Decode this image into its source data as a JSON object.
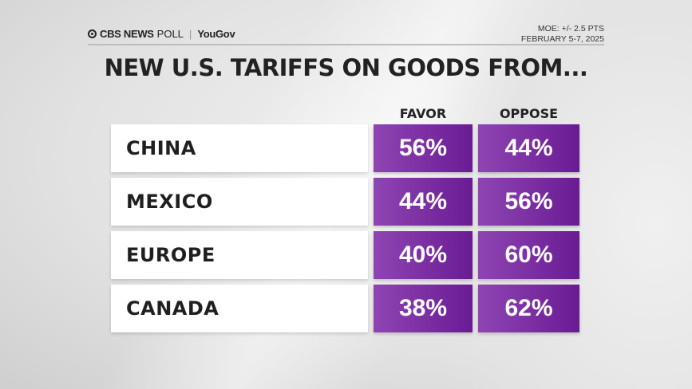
{
  "header": {
    "brand": "CBS NEWS",
    "poll": "POLL",
    "partner": "YouGov",
    "moe": "MOE: +/- 2.5 PTS",
    "dates": "FEBRUARY 5-7, 2025"
  },
  "chart_data": {
    "type": "table",
    "title": "NEW U.S. TARIFFS ON GOODS FROM...",
    "columns": [
      "FAVOR",
      "OPPOSE"
    ],
    "rows": [
      {
        "label": "CHINA",
        "favor": "56%",
        "oppose": "44%"
      },
      {
        "label": "MEXICO",
        "favor": "44%",
        "oppose": "56%"
      },
      {
        "label": "EUROPE",
        "favor": "40%",
        "oppose": "60%"
      },
      {
        "label": "CANADA",
        "favor": "38%",
        "oppose": "62%"
      }
    ],
    "cell_color": "#7b2fa3"
  }
}
